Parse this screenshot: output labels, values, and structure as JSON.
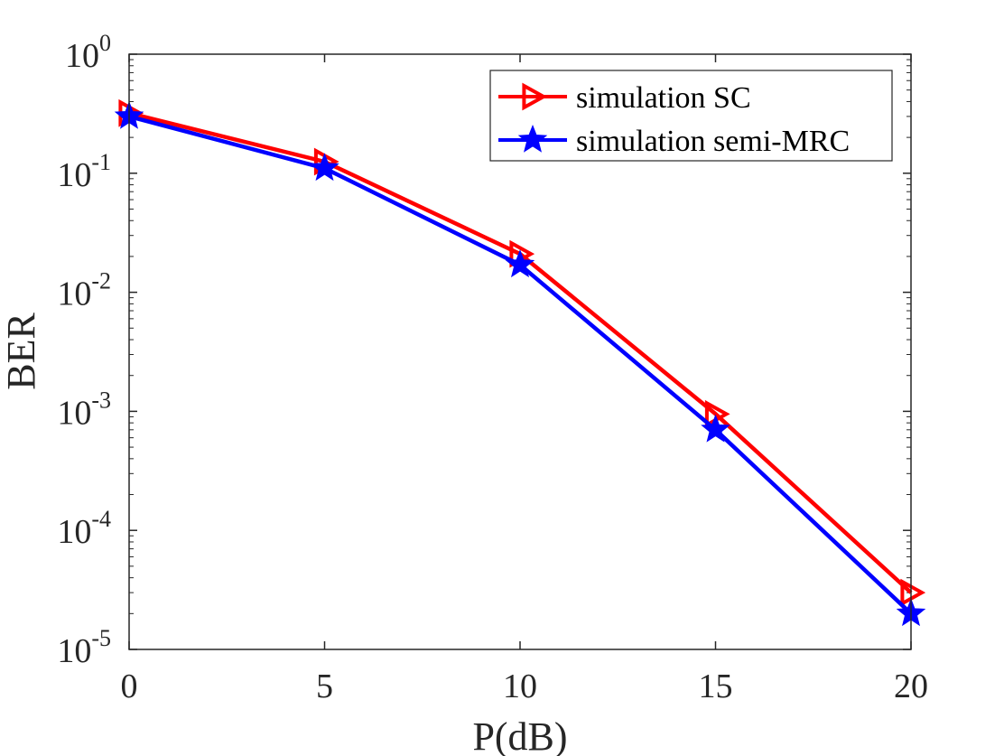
{
  "chart_data": {
    "type": "line",
    "xlabel": "P(dB)",
    "ylabel": "BER",
    "x": [
      0,
      5,
      10,
      15,
      20
    ],
    "xlim": [
      0,
      20
    ],
    "ylim": [
      1e-05,
      1
    ],
    "yscale": "log",
    "grid": false,
    "legend_position": "top-right",
    "x_ticks": [
      "0",
      "5",
      "10",
      "15",
      "20"
    ],
    "y_ticks": [
      {
        "base": "10",
        "exp": "0"
      },
      {
        "base": "10",
        "exp": "-1"
      },
      {
        "base": "10",
        "exp": "-2"
      },
      {
        "base": "10",
        "exp": "-3"
      },
      {
        "base": "10",
        "exp": "-4"
      },
      {
        "base": "10",
        "exp": "-5"
      }
    ],
    "series": [
      {
        "name": "simulation SC",
        "color": "#ff0000",
        "marker": "triangle-right",
        "values": [
          0.32,
          0.125,
          0.021,
          0.00095,
          3e-05
        ]
      },
      {
        "name": "simulation semi-MRC",
        "color": "#0000ff",
        "marker": "star",
        "values": [
          0.3,
          0.11,
          0.017,
          0.0007,
          2e-05
        ]
      }
    ]
  }
}
